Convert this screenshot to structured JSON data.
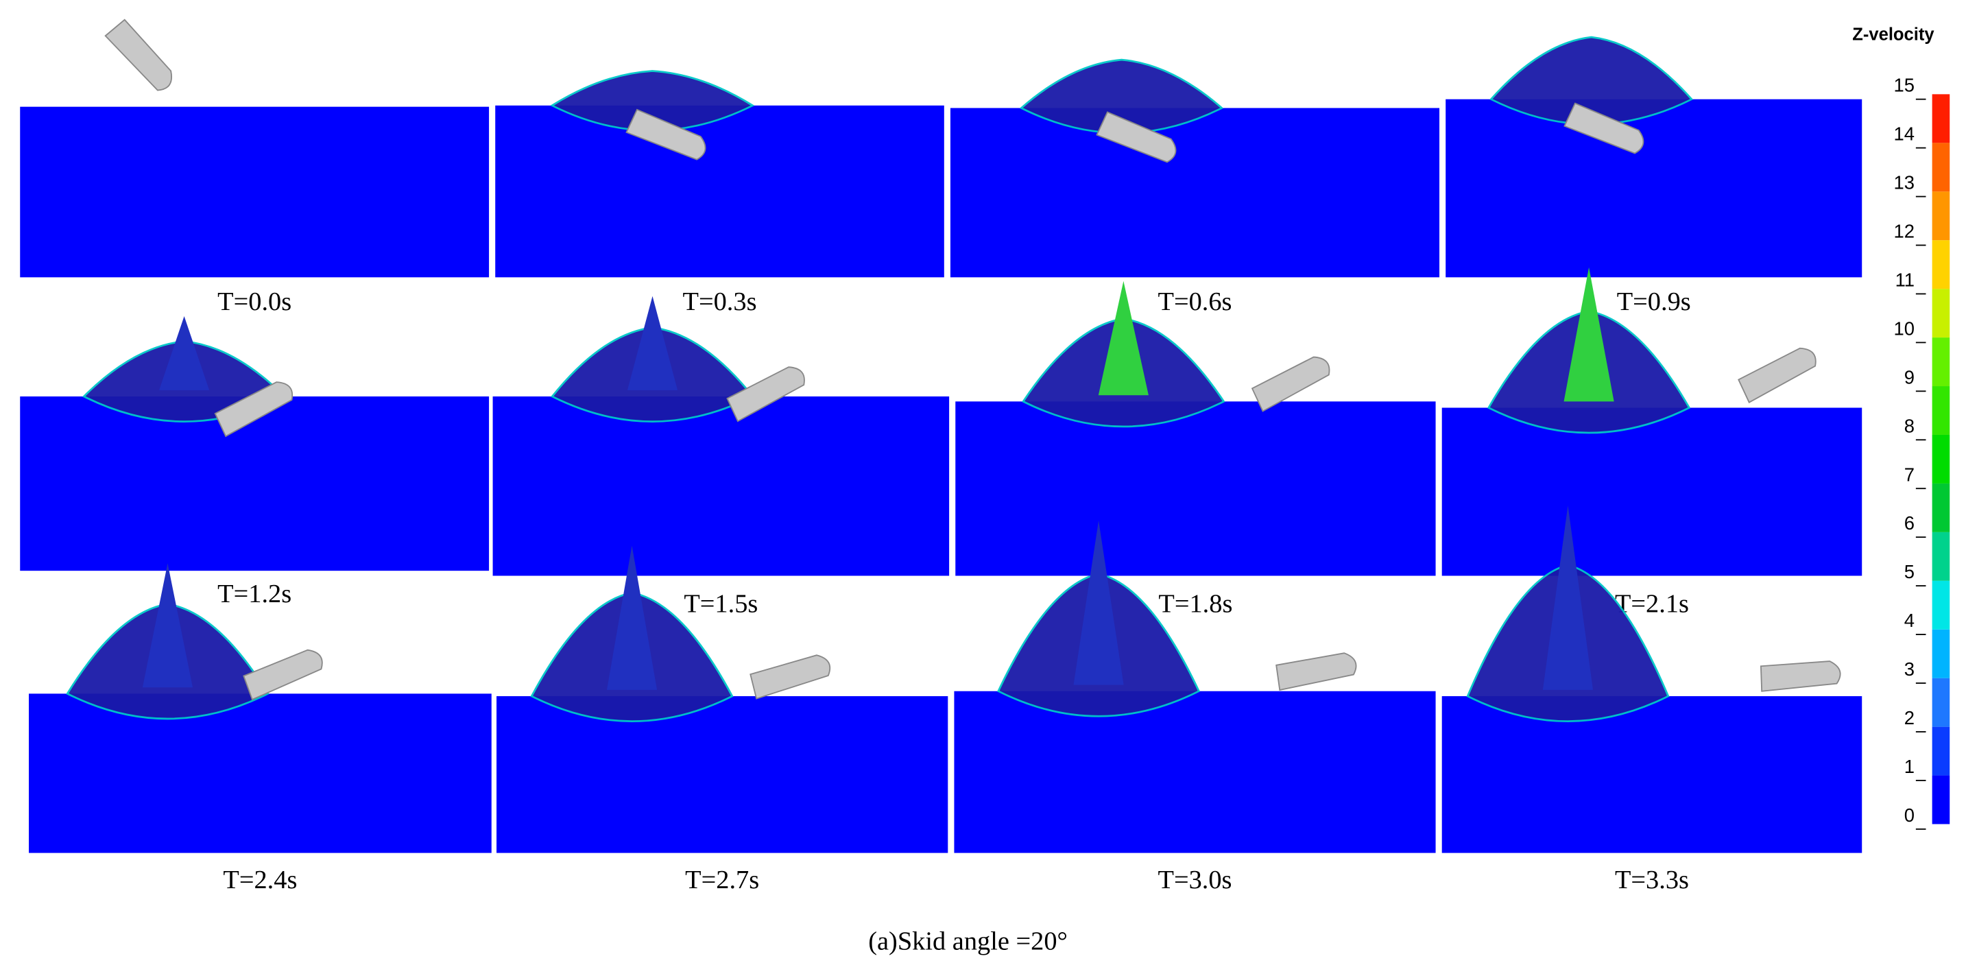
{
  "panels": [
    {
      "label": "T=0.0s"
    },
    {
      "label": "T=0.3s"
    },
    {
      "label": "T=0.6s"
    },
    {
      "label": "T=0.9s"
    },
    {
      "label": "T=1.2s"
    },
    {
      "label": "T=1.5s"
    },
    {
      "label": "T=1.8s"
    },
    {
      "label": "T=2.1s"
    },
    {
      "label": "T=2.4s"
    },
    {
      "label": "T=2.7s"
    },
    {
      "label": "T=3.0s"
    },
    {
      "label": "T=3.3s"
    }
  ],
  "colorbar": {
    "title": "Z-velocity",
    "ticks": [
      0,
      1,
      2,
      3,
      4,
      5,
      6,
      7,
      8,
      9,
      10,
      11,
      12,
      13,
      14,
      15
    ],
    "colors": [
      "#0000ff",
      "#0a3cff",
      "#1e78ff",
      "#00b4ff",
      "#00e6e6",
      "#00d28c",
      "#00c832",
      "#00dc00",
      "#32e600",
      "#64f000",
      "#c8f000",
      "#ffd200",
      "#ff9600",
      "#ff6400",
      "#ff1e00"
    ]
  },
  "caption": "(a)Skid angle =20°"
}
